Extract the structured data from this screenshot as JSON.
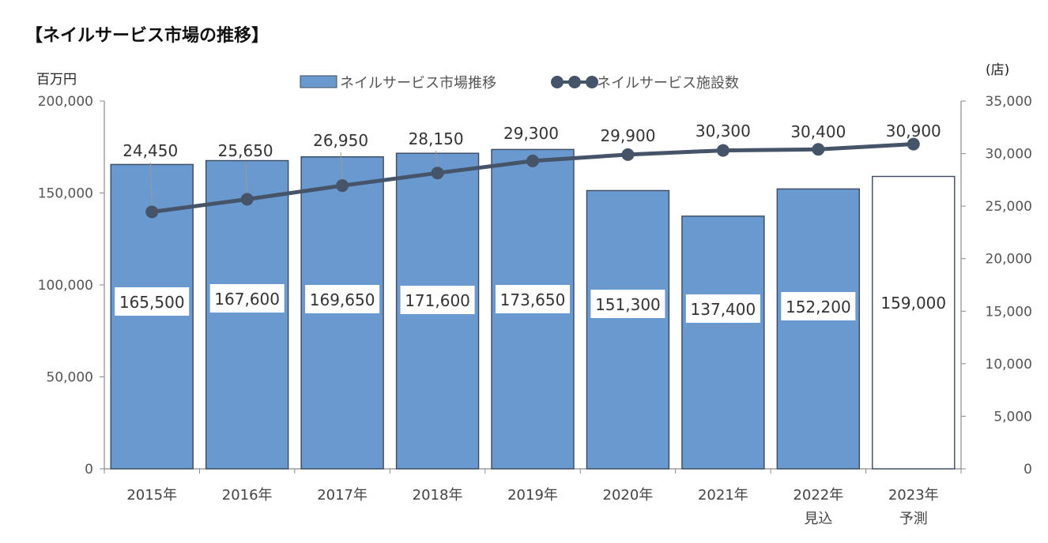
{
  "chart_data": {
    "type": "bar",
    "title": "【ネイルサービス市場の推移】",
    "left_axis_unit": "百万円",
    "right_axis_unit": "(店)",
    "categories": [
      [
        "2015年"
      ],
      [
        "2016年"
      ],
      [
        "2017年"
      ],
      [
        "2018年"
      ],
      [
        "2019年"
      ],
      [
        "2020年"
      ],
      [
        "2021年"
      ],
      [
        "2022年",
        "見込"
      ],
      [
        "2023年",
        "予測"
      ]
    ],
    "series": [
      {
        "name": "ネイルサービス市場推移",
        "type": "bar",
        "axis": "left",
        "values": [
          165500,
          167600,
          169650,
          171600,
          173650,
          151300,
          137400,
          152200,
          159000
        ],
        "labels": [
          "165,500",
          "167,600",
          "169,650",
          "171,600",
          "173,650",
          "151,300",
          "137,400",
          "152,200",
          "159,000"
        ],
        "forecast_index": 8
      },
      {
        "name": "ネイルサービス施設数",
        "type": "line",
        "axis": "right",
        "values": [
          24450,
          25650,
          26950,
          28150,
          29300,
          29900,
          30300,
          30400,
          30900
        ],
        "labels": [
          "24,450",
          "25,650",
          "26,950",
          "28,150",
          "29,300",
          "29,900",
          "30,300",
          "30,400",
          "30,900"
        ]
      }
    ],
    "y_left": {
      "min": 0,
      "max": 200000,
      "ticks": [
        "0",
        "50,000",
        "100,000",
        "150,000",
        "200,000"
      ]
    },
    "y_right": {
      "min": 0,
      "max": 35000,
      "ticks": [
        "0",
        "5,000",
        "10,000",
        "15,000",
        "20,000",
        "25,000",
        "30,000",
        "35,000"
      ]
    },
    "legend_position": "top-center",
    "grid": false,
    "colors": {
      "bar": "#6a99d0",
      "bar_stroke": "#3b4a5e",
      "line": "#46546a",
      "forecast_fill": "#ffffff"
    }
  }
}
